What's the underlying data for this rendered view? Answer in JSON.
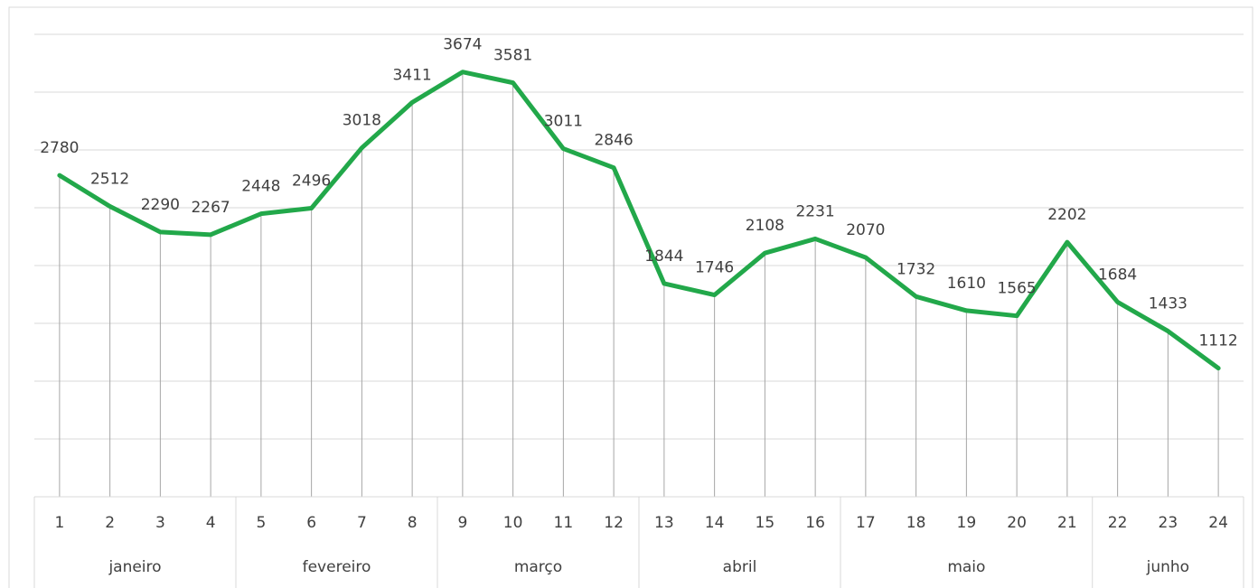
{
  "chart_data": {
    "type": "line",
    "groups": [
      {
        "name": "janeiro",
        "categories": [
          "1",
          "2",
          "3",
          "4"
        ]
      },
      {
        "name": "fevereiro",
        "categories": [
          "5",
          "6",
          "7",
          "8"
        ]
      },
      {
        "name": "março",
        "categories": [
          "9",
          "10",
          "11",
          "12"
        ]
      },
      {
        "name": "abril",
        "categories": [
          "13",
          "14",
          "15",
          "16"
        ]
      },
      {
        "name": "maio",
        "categories": [
          "17",
          "18",
          "19",
          "20",
          "21"
        ]
      },
      {
        "name": "junho",
        "categories": [
          "22",
          "23",
          "24"
        ]
      }
    ],
    "values": [
      2780,
      2512,
      2290,
      2267,
      2448,
      2496,
      3018,
      3411,
      3674,
      3581,
      3011,
      2846,
      1844,
      1746,
      2108,
      2231,
      2070,
      1732,
      1610,
      1565,
      2202,
      1684,
      1433,
      1112
    ],
    "color": "#22a84a",
    "ylim": [
      0,
      4000
    ],
    "yticks": [
      0,
      500,
      1000,
      1500,
      2000,
      2500,
      3000,
      3500,
      4000
    ],
    "grid": true,
    "drop_lines": true
  }
}
